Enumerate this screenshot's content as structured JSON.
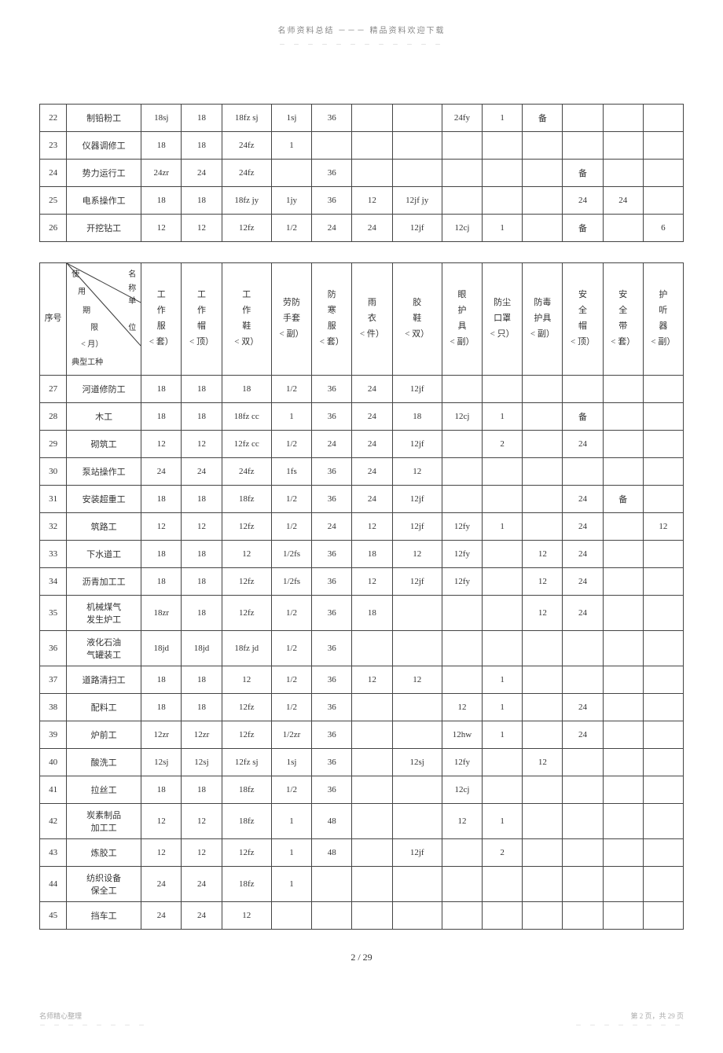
{
  "header": {
    "title": "名师资料总结 －－－ 精品资料欢迎下载",
    "dots": "－ － － － － － － － － － － －"
  },
  "table1": {
    "rows": [
      {
        "seq": "22",
        "name": "制铅粉工",
        "c": [
          "18sj",
          "18",
          "18fz sj",
          "1sj",
          "36",
          "",
          "",
          "24fy",
          "1",
          "备",
          "",
          "",
          ""
        ]
      },
      {
        "seq": "23",
        "name": "仪器调修工",
        "c": [
          "18",
          "18",
          "24fz",
          "1",
          "",
          "",
          "",
          "",
          "",
          "",
          "",
          "",
          ""
        ]
      },
      {
        "seq": "24",
        "name": "势力运行工",
        "c": [
          "24zr",
          "24",
          "24fz",
          "",
          "36",
          "",
          "",
          "",
          "",
          "",
          "备",
          "",
          ""
        ]
      },
      {
        "seq": "25",
        "name": "电系操作工",
        "c": [
          "18",
          "18",
          "18fz jy",
          "1jy",
          "36",
          "12",
          "12jf jy",
          "",
          "",
          "",
          "24",
          "24",
          ""
        ]
      },
      {
        "seq": "26",
        "name": "开挖钻工",
        "c": [
          "12",
          "12",
          "12fz",
          "1/2",
          "24",
          "24",
          "12jf",
          "12cj",
          "1",
          "",
          "备",
          "",
          "6"
        ]
      }
    ]
  },
  "table2": {
    "header": {
      "seq": "序号",
      "diag_top": "使",
      "diag_name": "名\n称",
      "diag_use": "用",
      "diag_period": "期",
      "diag_unit": "单",
      "diag_limit": "限",
      "diag_place": "位",
      "diag_month": "< 月）",
      "diag_type": "典型工种",
      "cols": [
        {
          "l1": "工",
          "l2": "作",
          "l3": "服",
          "u": "< 套）"
        },
        {
          "l1": "工",
          "l2": "作",
          "l3": "帽",
          "u": "< 顶）"
        },
        {
          "l1": "工",
          "l2": "作",
          "l3": "鞋",
          "u": "< 双）"
        },
        {
          "l1": "劳防",
          "l2": "手套",
          "l3": "",
          "u": "< 副）"
        },
        {
          "l1": "防",
          "l2": "寒",
          "l3": "服",
          "u": "< 套）"
        },
        {
          "l1": "雨",
          "l2": "",
          "l3": "衣",
          "u": "< 件）"
        },
        {
          "l1": "胶",
          "l2": "",
          "l3": "鞋",
          "u": "< 双）"
        },
        {
          "l1": "眼",
          "l2": "护",
          "l3": "具",
          "u": "< 副）"
        },
        {
          "l1": "防尘",
          "l2": "",
          "l3": "口罩",
          "u": "< 只）"
        },
        {
          "l1": "防毒",
          "l2": "",
          "l3": "护具",
          "u": "< 副）"
        },
        {
          "l1": "安",
          "l2": "全",
          "l3": "帽",
          "u": "< 顶）"
        },
        {
          "l1": "安",
          "l2": "全",
          "l3": "带",
          "u": "< 套）"
        },
        {
          "l1": "护",
          "l2": "听",
          "l3": "器",
          "u": "< 副）"
        }
      ]
    },
    "rows": [
      {
        "seq": "27",
        "name": "河道修防工",
        "c": [
          "18",
          "18",
          "18",
          "1/2",
          "36",
          "24",
          "12jf",
          "",
          "",
          "",
          "",
          "",
          ""
        ]
      },
      {
        "seq": "28",
        "name": "木工",
        "c": [
          "18",
          "18",
          "18fz cc",
          "1",
          "36",
          "24",
          "18",
          "12cj",
          "1",
          "",
          "备",
          "",
          ""
        ]
      },
      {
        "seq": "29",
        "name": "砌筑工",
        "c": [
          "12",
          "12",
          "12fz cc",
          "1/2",
          "24",
          "24",
          "12jf",
          "",
          "2",
          "",
          "24",
          "",
          ""
        ]
      },
      {
        "seq": "30",
        "name": "泵站操作工",
        "c": [
          "24",
          "24",
          "24fz",
          "1fs",
          "36",
          "24",
          "12",
          "",
          "",
          "",
          "",
          "",
          ""
        ]
      },
      {
        "seq": "31",
        "name": "安装超重工",
        "c": [
          "18",
          "18",
          "18fz",
          "1/2",
          "36",
          "24",
          "12jf",
          "",
          "",
          "",
          "24",
          "备",
          ""
        ]
      },
      {
        "seq": "32",
        "name": "筑路工",
        "c": [
          "12",
          "12",
          "12fz",
          "1/2",
          "24",
          "12",
          "12jf",
          "12fy",
          "1",
          "",
          "24",
          "",
          "12"
        ]
      },
      {
        "seq": "33",
        "name": "下水道工",
        "c": [
          "18",
          "18",
          "12",
          "1/2fs",
          "36",
          "18",
          "12",
          "12fy",
          "",
          "12",
          "24",
          "",
          ""
        ]
      },
      {
        "seq": "34",
        "name": "沥青加工工",
        "c": [
          "18",
          "18",
          "12fz",
          "1/2fs",
          "36",
          "12",
          "12jf",
          "12fy",
          "",
          "12",
          "24",
          "",
          ""
        ]
      },
      {
        "seq": "35",
        "name": "机械煤气\n发生炉工",
        "c": [
          "18zr",
          "18",
          "12fz",
          "1/2",
          "36",
          "18",
          "",
          "",
          "",
          "12",
          "24",
          "",
          ""
        ]
      },
      {
        "seq": "36",
        "name": "液化石油\n气罐装工",
        "c": [
          "18jd",
          "18jd",
          "18fz jd",
          "1/2",
          "36",
          "",
          "",
          "",
          "",
          "",
          "",
          "",
          ""
        ]
      },
      {
        "seq": "37",
        "name": "道路清扫工",
        "c": [
          "18",
          "18",
          "12",
          "1/2",
          "36",
          "12",
          "12",
          "",
          "1",
          "",
          "",
          "",
          ""
        ]
      },
      {
        "seq": "38",
        "name": "配料工",
        "c": [
          "18",
          "18",
          "12fz",
          "1/2",
          "36",
          "",
          "",
          "12",
          "1",
          "",
          "24",
          "",
          ""
        ]
      },
      {
        "seq": "39",
        "name": "炉前工",
        "c": [
          "12zr",
          "12zr",
          "12fz",
          "1/2zr",
          "36",
          "",
          "",
          "12hw",
          "1",
          "",
          "24",
          "",
          ""
        ]
      },
      {
        "seq": "40",
        "name": "酸洗工",
        "c": [
          "12sj",
          "12sj",
          "12fz sj",
          "1sj",
          "36",
          "",
          "12sj",
          "12fy",
          "",
          "12",
          "",
          "",
          ""
        ]
      },
      {
        "seq": "41",
        "name": "拉丝工",
        "c": [
          "18",
          "18",
          "18fz",
          "1/2",
          "36",
          "",
          "",
          "12cj",
          "",
          "",
          "",
          "",
          ""
        ]
      },
      {
        "seq": "42",
        "name": "炭素制品\n加工工",
        "c": [
          "12",
          "12",
          "18fz",
          "1",
          "48",
          "",
          "",
          "12",
          "1",
          "",
          "",
          "",
          ""
        ]
      },
      {
        "seq": "43",
        "name": "炼胶工",
        "c": [
          "12",
          "12",
          "12fz",
          "1",
          "48",
          "",
          "12jf",
          "",
          "2",
          "",
          "",
          "",
          ""
        ]
      },
      {
        "seq": "44",
        "name": "纺织设备\n保全工",
        "c": [
          "24",
          "24",
          "18fz",
          "1",
          "",
          "",
          "",
          "",
          "",
          "",
          "",
          "",
          ""
        ]
      },
      {
        "seq": "45",
        "name": "挡车工",
        "c": [
          "24",
          "24",
          "12",
          "",
          "",
          "",
          "",
          "",
          "",
          "",
          "",
          "",
          ""
        ]
      }
    ]
  },
  "page_num": "2 / 29",
  "footer": {
    "left": "名师精心整理",
    "right": "第 2 页，共 29 页",
    "dots": "－ － － － － － － －"
  }
}
